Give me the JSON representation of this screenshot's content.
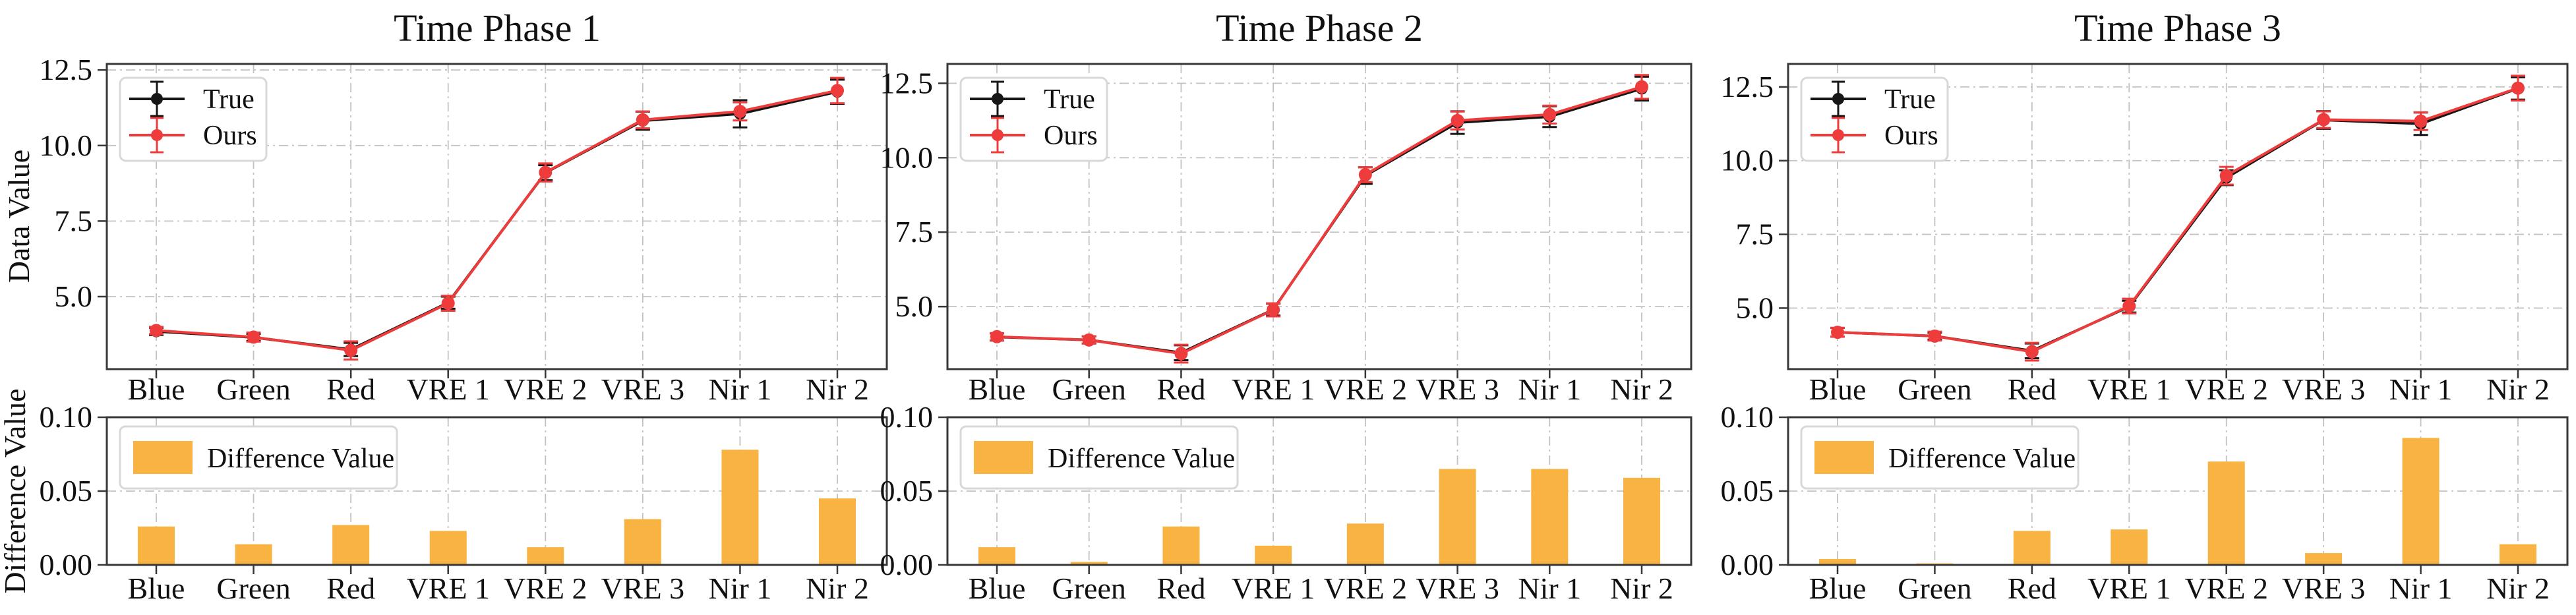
{
  "figure": {
    "background": "#ffffff",
    "colors": {
      "true_series": "#161616",
      "ours_series": "#ee3b3b",
      "bar": "#f9b342",
      "grid": "#c2c2c2",
      "spine": "#373737",
      "legend_border": "#d8d8d8",
      "legend_bg": "#ffffff",
      "text": "#111111"
    },
    "categories": [
      "Blue",
      "Green",
      "Red",
      "VRE 1",
      "VRE 2",
      "VRE 3",
      "Nir 1",
      "Nir 2"
    ],
    "top_axis_ticks": [
      "12.5",
      "10.0",
      "7.5",
      "5.0"
    ],
    "bottom_axis_ticks": [
      "0.10",
      "0.05",
      "0.00"
    ],
    "legend_labels": {
      "true": "True",
      "ours": "Ours",
      "diff": "Difference Value"
    }
  },
  "chart_data": [
    {
      "title": "Time Phase 1",
      "line": {
        "type": "line",
        "categories": [
          "Blue",
          "Green",
          "Red",
          "VRE 1",
          "VRE 2",
          "VRE 3",
          "Nir 1",
          "Nir 2"
        ],
        "ylabel": "Data Value",
        "ylim": [
          2.6,
          12.7
        ],
        "yticks": [
          5.0,
          7.5,
          10.0,
          12.5
        ],
        "grid": true,
        "legend_position": "upper-left",
        "series": [
          {
            "name": "True",
            "color_key": "true_series",
            "values": [
              3.85,
              3.65,
              3.25,
              4.8,
              9.1,
              10.82,
              11.05,
              11.78
            ],
            "err": [
              0.12,
              0.12,
              0.22,
              0.2,
              0.25,
              0.3,
              0.45,
              0.4
            ]
          },
          {
            "name": "Ours",
            "color_key": "ours_series",
            "values": [
              3.88,
              3.66,
              3.22,
              4.78,
              9.11,
              10.85,
              11.13,
              11.82
            ],
            "err": [
              0.12,
              0.15,
              0.3,
              0.25,
              0.3,
              0.28,
              0.3,
              0.42
            ]
          }
        ]
      },
      "bars": {
        "type": "bar",
        "categories": [
          "Blue",
          "Green",
          "Red",
          "VRE 1",
          "VRE 2",
          "VRE 3",
          "Nir 1",
          "Nir 2"
        ],
        "name": "Difference Value",
        "ylabel": "Difference Value",
        "ylim": [
          0,
          0.1
        ],
        "yticks": [
          0.0,
          0.05,
          0.1
        ],
        "grid": true,
        "values": [
          0.026,
          0.014,
          0.027,
          0.023,
          0.012,
          0.031,
          0.078,
          0.045
        ]
      }
    },
    {
      "title": "Time Phase 2",
      "line": {
        "type": "line",
        "categories": [
          "Blue",
          "Green",
          "Red",
          "VRE 1",
          "VRE 2",
          "VRE 3",
          "Nir 1",
          "Nir 2"
        ],
        "ylabel": "Data Value",
        "ylim": [
          2.9,
          13.15
        ],
        "yticks": [
          5.0,
          7.5,
          10.0,
          12.5
        ],
        "grid": true,
        "legend_position": "upper-left",
        "series": [
          {
            "name": "True",
            "color_key": "true_series",
            "values": [
              3.98,
              3.88,
              3.45,
              4.9,
              9.4,
              11.18,
              11.38,
              12.32
            ],
            "err": [
              0.12,
              0.12,
              0.25,
              0.2,
              0.28,
              0.38,
              0.35,
              0.4
            ]
          },
          {
            "name": "Ours",
            "color_key": "ours_series",
            "values": [
              3.99,
              3.88,
              3.42,
              4.89,
              9.43,
              11.25,
              11.45,
              12.38
            ],
            "err": [
              0.12,
              0.12,
              0.3,
              0.22,
              0.25,
              0.3,
              0.3,
              0.4
            ]
          }
        ]
      },
      "bars": {
        "type": "bar",
        "categories": [
          "Blue",
          "Green",
          "Red",
          "VRE 1",
          "VRE 2",
          "VRE 3",
          "Nir 1",
          "Nir 2"
        ],
        "name": "Difference Value",
        "ylabel": "Difference Value",
        "ylim": [
          0,
          0.1
        ],
        "yticks": [
          0.0,
          0.05,
          0.1
        ],
        "grid": true,
        "values": [
          0.012,
          0.002,
          0.026,
          0.013,
          0.028,
          0.065,
          0.065,
          0.059
        ]
      }
    },
    {
      "title": "Time Phase 3",
      "line": {
        "type": "line",
        "categories": [
          "Blue",
          "Green",
          "Red",
          "VRE 1",
          "VRE 2",
          "VRE 3",
          "Nir 1",
          "Nir 2"
        ],
        "ylabel": "Data Value",
        "ylim": [
          2.93,
          13.28
        ],
        "yticks": [
          5.0,
          7.5,
          10.0,
          12.5
        ],
        "grid": true,
        "legend_position": "upper-left",
        "series": [
          {
            "name": "True",
            "color_key": "true_series",
            "values": [
              4.18,
              4.05,
              3.55,
              5.05,
              9.42,
              11.38,
              11.25,
              12.45
            ],
            "err": [
              0.15,
              0.12,
              0.25,
              0.2,
              0.25,
              0.3,
              0.38,
              0.38
            ]
          },
          {
            "name": "Ours",
            "color_key": "ours_series",
            "values": [
              4.18,
              4.05,
              3.52,
              5.07,
              9.49,
              11.39,
              11.34,
              12.46
            ],
            "err": [
              0.15,
              0.15,
              0.3,
              0.25,
              0.3,
              0.28,
              0.3,
              0.42
            ]
          }
        ]
      },
      "bars": {
        "type": "bar",
        "categories": [
          "Blue",
          "Green",
          "Red",
          "VRE 1",
          "VRE 2",
          "VRE 3",
          "Nir 1",
          "Nir 2"
        ],
        "name": "Difference Value",
        "ylabel": "Difference Value",
        "ylim": [
          0,
          0.1
        ],
        "yticks": [
          0.0,
          0.05,
          0.1
        ],
        "grid": true,
        "values": [
          0.004,
          0.001,
          0.023,
          0.024,
          0.07,
          0.008,
          0.086,
          0.014
        ]
      }
    }
  ]
}
